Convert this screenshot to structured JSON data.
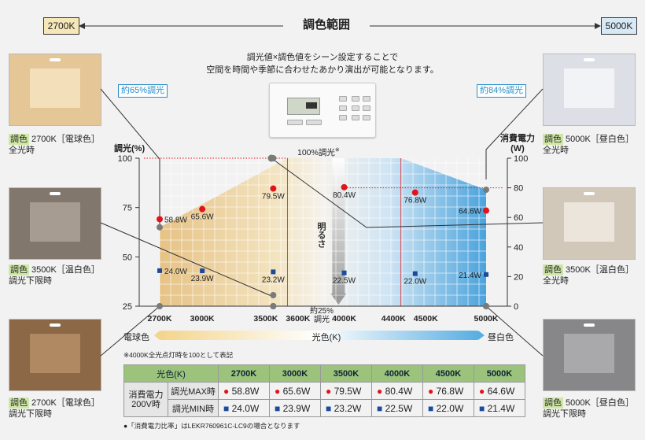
{
  "range": {
    "title": "調色範囲",
    "left_k": "2700K",
    "right_k": "5000K"
  },
  "description": {
    "line1": "調光値×調色値をシーン設定することで",
    "line2": "空間を時間や季節に合わせたあかり演出が可能となります。"
  },
  "controller_icons": [
    "wall-controller-icon"
  ],
  "callouts": {
    "left": "約65%調光",
    "right": "約84%調光"
  },
  "rooms": [
    {
      "name": "room-2700k-full",
      "tag": "調色",
      "line1": " 2700K［電球色］",
      "line2": "全光時",
      "color": "#e9cfa6"
    },
    {
      "name": "room-3500k-min",
      "tag": "調色",
      "line1": " 3500K［温白色］",
      "line2": "調光下限時",
      "color": "#8c8073"
    },
    {
      "name": "room-2700k-min",
      "tag": "調色",
      "line1": " 2700K［電球色］",
      "line2": "調光下限時",
      "color": "#9a7350"
    },
    {
      "name": "room-5000k-full",
      "tag": "調色",
      "line1": " 5000K［昼白色］",
      "line2": "全光時",
      "color": "#e6e8ee"
    },
    {
      "name": "room-3500k-full",
      "tag": "調色",
      "line1": " 3500K［温白色］",
      "line2": "全光時",
      "color": "#dcd3c6"
    },
    {
      "name": "room-5000k-min",
      "tag": "調色",
      "line1": " 5000K［昼白色］",
      "line2": "調光下限時",
      "color": "#908f90"
    }
  ],
  "chart_data": {
    "type": "scatter",
    "x_values": [
      2700,
      3000,
      3500,
      4000,
      4500,
      5000
    ],
    "x_ticks": [
      "2700K",
      "3000K",
      "3500K",
      "3600K",
      "4000K",
      "4400K",
      "4500K",
      "5000K"
    ],
    "ylabel_left": "調光(%)",
    "ylabel_right": "消費電力(W)",
    "ylim_left": [
      25,
      100
    ],
    "y_ticks_left": [
      "100",
      "75",
      "50",
      "25"
    ],
    "ylim_right": [
      0,
      100
    ],
    "y_ticks_right": [
      "100",
      "80",
      "60",
      "40",
      "20",
      "0"
    ],
    "dimming_envelope": [
      {
        "x": 2700,
        "y": 65
      },
      {
        "x": 3600,
        "y": 100
      },
      {
        "x": 4400,
        "y": 100
      },
      {
        "x": 5000,
        "y": 84
      }
    ],
    "labels": {
      "full": "100%調光",
      "full_mark": "※",
      "min_line1": "約25%",
      "min_line2": "調光",
      "brightness": "明るさ"
    },
    "series": [
      {
        "name": "調光MAX時",
        "marker": "circle",
        "color": "#e0151b",
        "values": [
          58.8,
          65.6,
          79.5,
          80.4,
          76.8,
          64.6
        ],
        "labels": [
          "58.8W",
          "65.6W",
          "79.5W",
          "80.4W",
          "76.8W",
          "64.6W"
        ]
      },
      {
        "name": "調光MIN時",
        "marker": "square",
        "color": "#1c4a9c",
        "values": [
          24.0,
          23.9,
          23.2,
          22.5,
          22.0,
          21.4
        ],
        "labels": [
          "24.0W",
          "23.9W",
          "23.2W",
          "22.5W",
          "22.0W",
          "21.4W"
        ]
      }
    ],
    "color_bar": {
      "left": "電球色",
      "center": "光色(K)",
      "right": "昼白色"
    },
    "colors": {
      "warm": "#e8c88a",
      "cool": "#3f9fdb",
      "max": "#e0151b",
      "min": "#1c4a9c"
    }
  },
  "footnote_top": "※4000K全光点灯時を100として表記",
  "table": {
    "header_label": "光色(K)",
    "columns": [
      "2700K",
      "3000K",
      "3500K",
      "4000K",
      "4500K",
      "5000K"
    ],
    "group_label_1": "消費電力",
    "group_label_2": "200V時",
    "row_max_label": "調光MAX時",
    "row_min_label": "調光MIN時",
    "max": [
      "58.8W",
      "65.6W",
      "79.5W",
      "80.4W",
      "76.8W",
      "64.6W"
    ],
    "min": [
      "24.0W",
      "23.9W",
      "23.2W",
      "22.5W",
      "22.0W",
      "21.4W"
    ]
  },
  "footnote_bottom": "●「消費電力比率」はLEKR760961C-LC9の場合となります"
}
